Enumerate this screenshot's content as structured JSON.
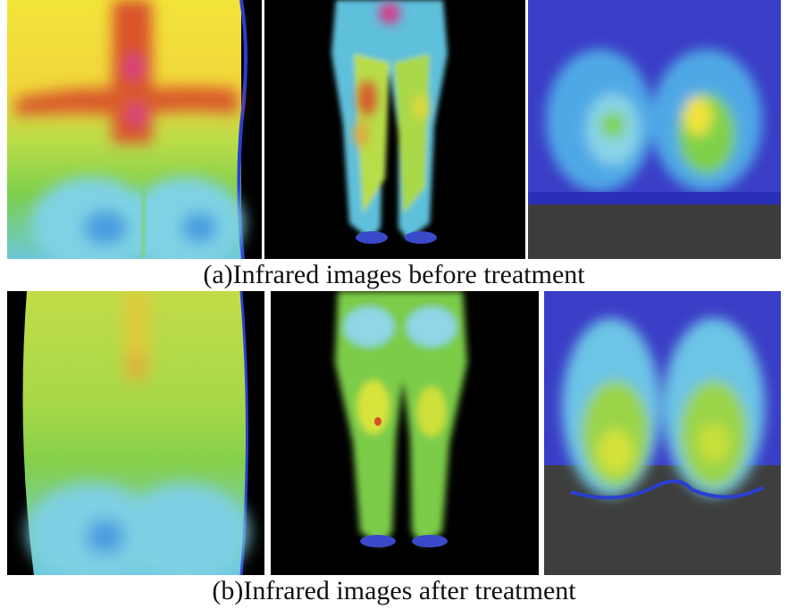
{
  "figure": {
    "caption_before": "(a)Infrared images before treatment",
    "caption_after": "(b)Infrared images after treatment"
  },
  "images": [
    {
      "row": "before",
      "subject": "back-thermal",
      "dominant_colors": [
        "#e03b2a",
        "#f6e23a",
        "#7fd14a",
        "#5cc6e8"
      ]
    },
    {
      "row": "before",
      "subject": "legs-thermal",
      "dominant_colors": [
        "#000000",
        "#7fd14a",
        "#f6e23a",
        "#d0402e"
      ]
    },
    {
      "row": "before",
      "subject": "feet-soles-thermal",
      "dominant_colors": [
        "#2a3fc6",
        "#4fb0e6",
        "#7fd14a",
        "#f6e23a"
      ]
    },
    {
      "row": "after",
      "subject": "back-thermal",
      "dominant_colors": [
        "#000000",
        "#a4d84a",
        "#e3e84a",
        "#6cc9e6"
      ]
    },
    {
      "row": "after",
      "subject": "legs-thermal",
      "dominant_colors": [
        "#000000",
        "#6cc84a",
        "#e3e84a",
        "#8ad4e8"
      ]
    },
    {
      "row": "after",
      "subject": "feet-soles-thermal",
      "dominant_colors": [
        "#2a3fc6",
        "#5ab8e8",
        "#9ad44a",
        "#3a3a3a"
      ]
    }
  ]
}
